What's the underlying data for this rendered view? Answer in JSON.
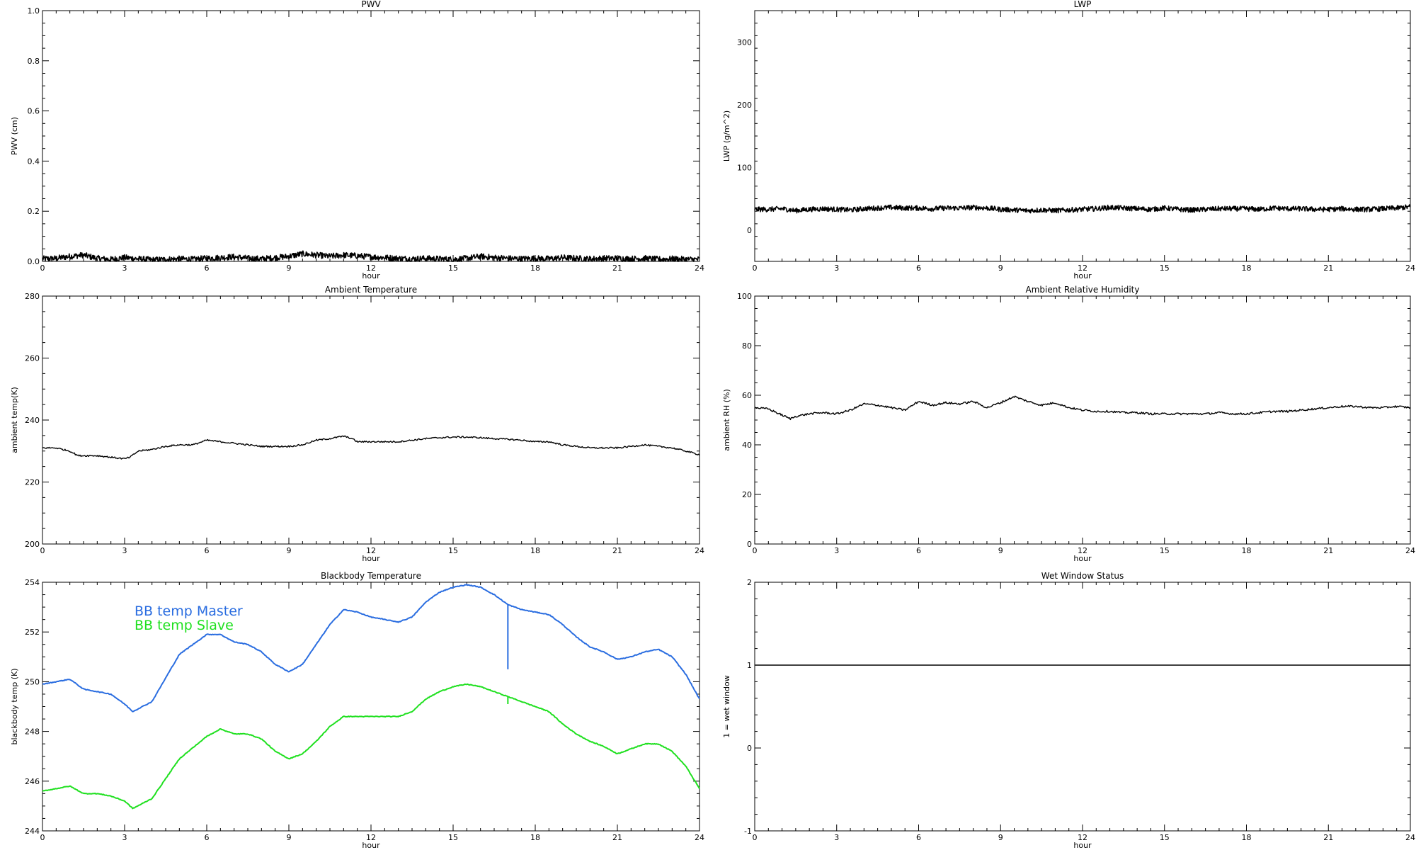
{
  "chart_data": [
    {
      "id": "pwv",
      "type": "line",
      "title": "PWV",
      "xlabel": "hour",
      "ylabel": "PWV (cm)",
      "xlim": [
        0,
        24
      ],
      "ylim": [
        0.0,
        1.0
      ],
      "xticks": [
        0,
        3,
        6,
        9,
        12,
        15,
        18,
        21,
        24
      ],
      "yticks": [
        0.0,
        0.2,
        0.4,
        0.6,
        0.8,
        1.0
      ],
      "ytick_labels": [
        "0.0",
        "0.2",
        "0.4",
        "0.6",
        "0.8",
        "1.0"
      ],
      "ytick_step_minor": 0.05,
      "grid": false,
      "series": [
        {
          "color": "#000000",
          "style": "noisy",
          "x": [
            0,
            0.5,
            1,
            1.5,
            2,
            2.5,
            3,
            3.5,
            4,
            4.5,
            5,
            5.5,
            6,
            6.5,
            7,
            7.5,
            8,
            8.5,
            9,
            9.5,
            10,
            10.5,
            11,
            11.5,
            12,
            12.5,
            13,
            13.5,
            14,
            14.5,
            15,
            15.5,
            16,
            16.5,
            17,
            17.5,
            18,
            18.5,
            19,
            19.5,
            20,
            20.5,
            21,
            21.5,
            22,
            22.5,
            23,
            23.5,
            24
          ],
          "values": [
            0.01,
            0.012,
            0.02,
            0.025,
            0.012,
            0.008,
            0.015,
            0.01,
            0.006,
            0.008,
            0.01,
            0.008,
            0.012,
            0.015,
            0.018,
            0.012,
            0.01,
            0.015,
            0.02,
            0.03,
            0.025,
            0.02,
            0.025,
            0.022,
            0.018,
            0.015,
            0.012,
            0.01,
            0.012,
            0.01,
            0.008,
            0.012,
            0.02,
            0.015,
            0.012,
            0.01,
            0.012,
            0.01,
            0.015,
            0.012,
            0.01,
            0.012,
            0.012,
            0.01,
            0.012,
            0.008,
            0.01,
            0.008,
            0.008
          ],
          "noise": 0.012
        }
      ]
    },
    {
      "id": "lwp",
      "type": "line",
      "title": "LWP",
      "xlabel": "hour",
      "ylabel": "LWP (g/m^2)",
      "xlim": [
        0,
        24
      ],
      "ylim": [
        -50,
        350
      ],
      "xticks": [
        0,
        3,
        6,
        9,
        12,
        15,
        18,
        21,
        24
      ],
      "yticks": [
        0,
        100,
        200,
        300
      ],
      "ytick_labels": [
        "0",
        "100",
        "200",
        "300"
      ],
      "ytick_step_minor": 20,
      "grid": false,
      "series": [
        {
          "color": "#000000",
          "style": "noisy",
          "x": [
            0,
            0.5,
            1,
            1.5,
            2,
            2.5,
            3,
            3.5,
            4,
            4.5,
            5,
            5.5,
            6,
            6.5,
            7,
            7.5,
            8,
            8.5,
            9,
            9.5,
            10,
            10.5,
            11,
            11.5,
            12,
            12.5,
            13,
            13.5,
            14,
            14.5,
            15,
            15.5,
            16,
            16.5,
            17,
            17.5,
            18,
            18.5,
            19,
            19.5,
            20,
            20.5,
            21,
            21.5,
            22,
            22.5,
            23,
            23.5,
            24
          ],
          "values": [
            33,
            33,
            34,
            31,
            33,
            34,
            33,
            32,
            34,
            35,
            36,
            35,
            35,
            34,
            35,
            35,
            36,
            35,
            33,
            32,
            31,
            32,
            31,
            32,
            33,
            34,
            36,
            35,
            34,
            33,
            35,
            33,
            32,
            33,
            34,
            34,
            34,
            33,
            35,
            34,
            34,
            33,
            33,
            34,
            33,
            33,
            34,
            35,
            37
          ],
          "noise": 4
        }
      ]
    },
    {
      "id": "ambient-temp",
      "type": "line",
      "title": "Ambient Temperature",
      "xlabel": "hour",
      "ylabel": "ambient temp(K)",
      "xlim": [
        0,
        24
      ],
      "ylim": [
        200,
        280
      ],
      "xticks": [
        0,
        3,
        6,
        9,
        12,
        15,
        18,
        21,
        24
      ],
      "yticks": [
        200,
        220,
        240,
        260,
        280
      ],
      "ytick_labels": [
        "200",
        "220",
        "240",
        "260",
        "280"
      ],
      "ytick_step_minor": 5,
      "grid": false,
      "series": [
        {
          "color": "#000000",
          "style": "smooth",
          "x": [
            0,
            0.5,
            1,
            1.3,
            1.5,
            2,
            2.5,
            3,
            3.2,
            3.5,
            4,
            4.5,
            5,
            5.5,
            6,
            6.5,
            7,
            7.5,
            8,
            8.5,
            9,
            9.5,
            10,
            10.5,
            11,
            11.3,
            11.5,
            12,
            12.5,
            13,
            13.5,
            14,
            14.5,
            15,
            15.5,
            16,
            16.5,
            17,
            17.5,
            18,
            18.5,
            19,
            19.5,
            20,
            20.5,
            21,
            21.5,
            22,
            22.5,
            23,
            23.5,
            24
          ],
          "values": [
            231,
            231,
            230,
            228.5,
            228.5,
            228.5,
            228,
            227.5,
            228,
            230,
            230.5,
            231.5,
            232,
            232,
            233.5,
            233,
            232.5,
            232,
            231.5,
            231.5,
            231.5,
            232,
            233.5,
            234,
            234.8,
            234,
            233,
            233,
            233,
            233,
            233.5,
            234,
            234.3,
            234.5,
            234.5,
            234.3,
            234,
            233.8,
            233.5,
            233,
            233,
            232,
            231.5,
            231,
            231,
            231,
            231.5,
            232,
            231.5,
            231,
            230,
            228.8
          ],
          "noise": 0.25
        }
      ]
    },
    {
      "id": "ambient-rh",
      "type": "line",
      "title": "Ambient Relative Humidity",
      "xlabel": "hour",
      "ylabel": "ambient RH (%)",
      "xlim": [
        0,
        24
      ],
      "ylim": [
        0,
        100
      ],
      "xticks": [
        0,
        3,
        6,
        9,
        12,
        15,
        18,
        21,
        24
      ],
      "yticks": [
        0,
        20,
        40,
        60,
        80,
        100
      ],
      "ytick_labels": [
        "0",
        "20",
        "40",
        "60",
        "80",
        "100"
      ],
      "ytick_step_minor": 5,
      "grid": false,
      "series": [
        {
          "color": "#000000",
          "style": "smooth",
          "x": [
            0,
            0.5,
            1,
            1.3,
            1.5,
            2,
            2.5,
            3,
            3.5,
            4,
            4.5,
            5,
            5.5,
            6,
            6.5,
            7,
            7.5,
            8,
            8.5,
            9,
            9.5,
            10,
            10.5,
            11,
            11.5,
            12,
            12.5,
            13,
            13.5,
            14,
            14.5,
            15,
            15.5,
            16,
            16.5,
            17,
            17.5,
            18,
            18.5,
            19,
            19.5,
            20,
            20.5,
            21,
            21.5,
            22,
            22.5,
            23,
            23.5,
            24
          ],
          "values": [
            55,
            54.5,
            52,
            50.5,
            51.5,
            52.5,
            53,
            52.5,
            54,
            56.5,
            56,
            55,
            54,
            57.5,
            56,
            57,
            56.5,
            57.5,
            55,
            57,
            59.5,
            57.5,
            56,
            57,
            55,
            54,
            53.5,
            53.5,
            53,
            53,
            52.5,
            52.5,
            52.5,
            52.5,
            52.5,
            53,
            52.5,
            52.5,
            53,
            53.5,
            53.5,
            54,
            54.5,
            55,
            55.5,
            55.5,
            55,
            55,
            55.5,
            55
          ],
          "noise": 0.4
        }
      ]
    },
    {
      "id": "blackbody-temp",
      "type": "line",
      "title": "Blackbody Temperature",
      "xlabel": "hour",
      "ylabel": "blackbody temp (K)",
      "xlim": [
        0,
        24
      ],
      "ylim": [
        244,
        254
      ],
      "xticks": [
        0,
        3,
        6,
        9,
        12,
        15,
        18,
        21,
        24
      ],
      "yticks": [
        244,
        246,
        248,
        250,
        252,
        254
      ],
      "ytick_labels": [
        "244",
        "246",
        "248",
        "250",
        "252",
        "254"
      ],
      "ytick_step_minor": 0.5,
      "grid": false,
      "legend": {
        "placement": "top-left",
        "entries": [
          {
            "label": "BB temp Master",
            "color": "#2a6de0"
          },
          {
            "label": "BB temp Slave",
            "color": "#1fe01f"
          }
        ]
      },
      "series": [
        {
          "color": "#2a6de0",
          "style": "smooth",
          "x": [
            0,
            0.5,
            1,
            1.5,
            2,
            2.5,
            3,
            3.3,
            4,
            5,
            6,
            6.5,
            7,
            7.5,
            8,
            8.5,
            9,
            9.5,
            10,
            10.5,
            11,
            11.5,
            12,
            12.5,
            13,
            13.5,
            14,
            14.5,
            15,
            15.5,
            16,
            16.5,
            17,
            17.5,
            18,
            18.5,
            19,
            19.5,
            20,
            20.5,
            21,
            21.5,
            22,
            22.5,
            23,
            23.5,
            24
          ],
          "values": [
            249.9,
            250.0,
            250.1,
            249.7,
            249.6,
            249.5,
            249.1,
            248.8,
            249.2,
            251.1,
            251.9,
            251.9,
            251.6,
            251.5,
            251.2,
            250.7,
            250.4,
            250.7,
            251.5,
            252.3,
            252.9,
            252.8,
            252.6,
            252.5,
            252.4,
            252.6,
            253.2,
            253.6,
            253.8,
            253.9,
            253.8,
            253.5,
            253.1,
            252.9,
            252.8,
            252.7,
            252.3,
            251.8,
            251.4,
            251.2,
            250.9,
            251.0,
            251.2,
            251.3,
            251.0,
            250.3,
            249.3
          ],
          "spike": {
            "x": 17,
            "to": 250.5
          },
          "noise": 0.015
        },
        {
          "color": "#1fe01f",
          "style": "smooth",
          "x": [
            0,
            0.5,
            1,
            1.5,
            2,
            2.5,
            3,
            3.3,
            4,
            5,
            6,
            6.5,
            7,
            7.5,
            8,
            8.5,
            9,
            9.5,
            10,
            10.5,
            11,
            11.5,
            12,
            12.5,
            13,
            13.5,
            14,
            14.5,
            15,
            15.5,
            16,
            16.5,
            17,
            17.5,
            18,
            18.5,
            19,
            19.5,
            20,
            20.5,
            21,
            21.5,
            22,
            22.5,
            23,
            23.5,
            24
          ],
          "values": [
            245.6,
            245.7,
            245.8,
            245.5,
            245.5,
            245.4,
            245.2,
            244.9,
            245.3,
            246.9,
            247.8,
            248.1,
            247.9,
            247.9,
            247.7,
            247.2,
            246.9,
            247.1,
            247.6,
            248.2,
            248.6,
            248.6,
            248.6,
            248.6,
            248.6,
            248.8,
            249.3,
            249.6,
            249.8,
            249.9,
            249.8,
            249.6,
            249.4,
            249.2,
            249.0,
            248.8,
            248.3,
            247.9,
            247.6,
            247.4,
            247.1,
            247.3,
            247.5,
            247.5,
            247.2,
            246.6,
            245.7
          ],
          "spike": {
            "x": 17,
            "to": 249.1
          },
          "noise": 0.015
        }
      ]
    },
    {
      "id": "wet-window",
      "type": "line",
      "title": "Wet Window Status",
      "xlabel": "hour",
      "ylabel": "1 = wet window",
      "xlim": [
        0,
        24
      ],
      "ylim": [
        -1,
        2
      ],
      "xticks": [
        0,
        3,
        6,
        9,
        12,
        15,
        18,
        21,
        24
      ],
      "yticks": [
        -1,
        0,
        1,
        2
      ],
      "ytick_labels": [
        "-1",
        "0",
        "1",
        "2"
      ],
      "ytick_step_minor": 0.2,
      "grid": false,
      "series": [
        {
          "color": "#000000",
          "style": "flat",
          "x": [
            0,
            24
          ],
          "values": [
            1,
            1
          ],
          "noise": 0
        }
      ]
    }
  ]
}
